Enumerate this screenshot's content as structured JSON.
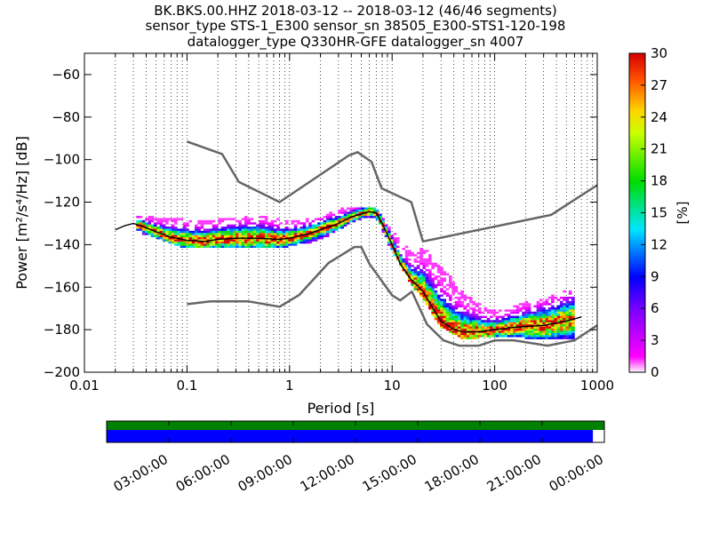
{
  "header": {
    "line1": "BK.BKS.00.HHZ   2018-03-12 -- 2018-03-12  (46/46 segments)",
    "line2": "sensor_type STS-1_E300 sensor_sn 38505_E300-STS1-120-198",
    "line3": "datalogger_type Q330HR-GFE datalogger_sn 4007"
  },
  "chart_data": [
    {
      "type": "heatmap",
      "title": "BK.BKS.00.HHZ   2018-03-12 -- 2018-03-12  (46/46 segments)",
      "xlabel": "Period [s]",
      "ylabel": "Power [m²/s⁴/Hz] [dB]",
      "xscale": "log",
      "xlim": [
        0.01,
        1000
      ],
      "ylim": [
        -200,
        -50
      ],
      "x_ticks": [
        0.01,
        0.1,
        1,
        10,
        100,
        1000
      ],
      "x_tick_labels": [
        "0.01",
        "0.1",
        "1",
        "10",
        "100",
        "1000"
      ],
      "y_ticks": [
        -200,
        -180,
        -160,
        -140,
        -120,
        -100,
        -80,
        -60
      ],
      "y_tick_labels": [
        "−200",
        "−180",
        "−160",
        "−140",
        "−120",
        "−100",
        "−80",
        "−60"
      ],
      "grid": "dotted vertical",
      "colorbar": {
        "label": "[%]",
        "min": 0,
        "max": 30,
        "ticks": [
          0,
          3,
          6,
          9,
          12,
          15,
          18,
          21,
          24,
          27,
          30
        ],
        "tick_labels": [
          "0",
          "3",
          "6",
          "9",
          "12",
          "15",
          "18",
          "21",
          "24",
          "27",
          "30"
        ]
      },
      "noise_model_high": {
        "period": [
          0.1,
          0.22,
          0.32,
          0.8,
          3.8,
          4.6,
          6.3,
          7.9,
          15.4,
          20,
          354.8,
          1000
        ],
        "power": [
          -91.5,
          -97.4,
          -110.5,
          -120,
          -98,
          -96.5,
          -101,
          -113.5,
          -120,
          -138.5,
          -126,
          -112
        ]
      },
      "noise_model_low": {
        "period": [
          0.1,
          0.17,
          0.4,
          0.8,
          1.24,
          2.4,
          4.3,
          5,
          6,
          10,
          12,
          15.6,
          21.9,
          31.6,
          45,
          70,
          101,
          154,
          328,
          600,
          1000
        ],
        "power": [
          -168,
          -166.7,
          -166.7,
          -169.2,
          -163.7,
          -148.6,
          -141.1,
          -141.1,
          -149,
          -163.8,
          -166.2,
          -162.1,
          -177.5,
          -185,
          -187.5,
          -187.5,
          -185,
          -185,
          -187.5,
          -185,
          -178
        ]
      },
      "mode_curve": {
        "period": [
          0.02,
          0.025,
          0.03,
          0.035,
          0.05,
          0.07,
          0.1,
          0.15,
          0.2,
          0.3,
          0.5,
          0.8,
          1.0,
          1.5,
          2,
          3,
          4,
          5,
          6,
          7,
          8,
          10,
          12,
          15,
          20,
          25,
          30,
          40,
          50,
          70,
          100,
          150,
          200,
          300,
          500,
          700
        ],
        "power": [
          -133,
          -131,
          -130,
          -131,
          -134,
          -136.5,
          -138,
          -138.5,
          -137.5,
          -137,
          -137,
          -137.5,
          -137,
          -135,
          -133,
          -130,
          -127,
          -125.5,
          -124.5,
          -125,
          -130,
          -140,
          -149,
          -156,
          -162,
          -170,
          -176,
          -180,
          -181,
          -181,
          -180,
          -179,
          -178.5,
          -178,
          -176,
          -174
        ]
      },
      "spread_low": {
        "period": [
          0.02,
          0.03,
          0.05,
          0.1,
          0.2,
          0.5,
          1,
          2,
          3,
          5,
          7,
          10,
          15,
          20,
          30,
          50,
          100,
          200,
          300,
          600
        ],
        "power": [
          -134,
          -133,
          -136,
          -141,
          -141,
          -141,
          -140,
          -137,
          -132,
          -127,
          -127,
          -142,
          -157,
          -165,
          -178,
          -184,
          -182,
          -183,
          -184,
          -183
        ]
      },
      "spread_high": {
        "period": [
          0.02,
          0.03,
          0.05,
          0.1,
          0.2,
          0.5,
          1,
          2,
          3,
          5,
          7,
          10,
          15,
          20,
          30,
          50,
          100,
          200,
          300,
          600
        ],
        "power": [
          -132,
          -127,
          -128,
          -129,
          -129,
          -127,
          -130,
          -128,
          -124,
          -123,
          -124,
          -134,
          -144,
          -142,
          -150,
          -164,
          -172,
          -168,
          -166,
          -161
        ]
      }
    },
    {
      "type": "timeline",
      "tick_labels": [
        "03:00:00",
        "06:00:00",
        "09:00:00",
        "12:00:00",
        "15:00:00",
        "18:00:00",
        "21:00:00",
        "00:00:00"
      ],
      "data_coverage_fraction": 1.0,
      "psd_coverage_fraction": 0.977,
      "colors": {
        "data": "#008000",
        "psd": "#0000ff"
      }
    }
  ]
}
